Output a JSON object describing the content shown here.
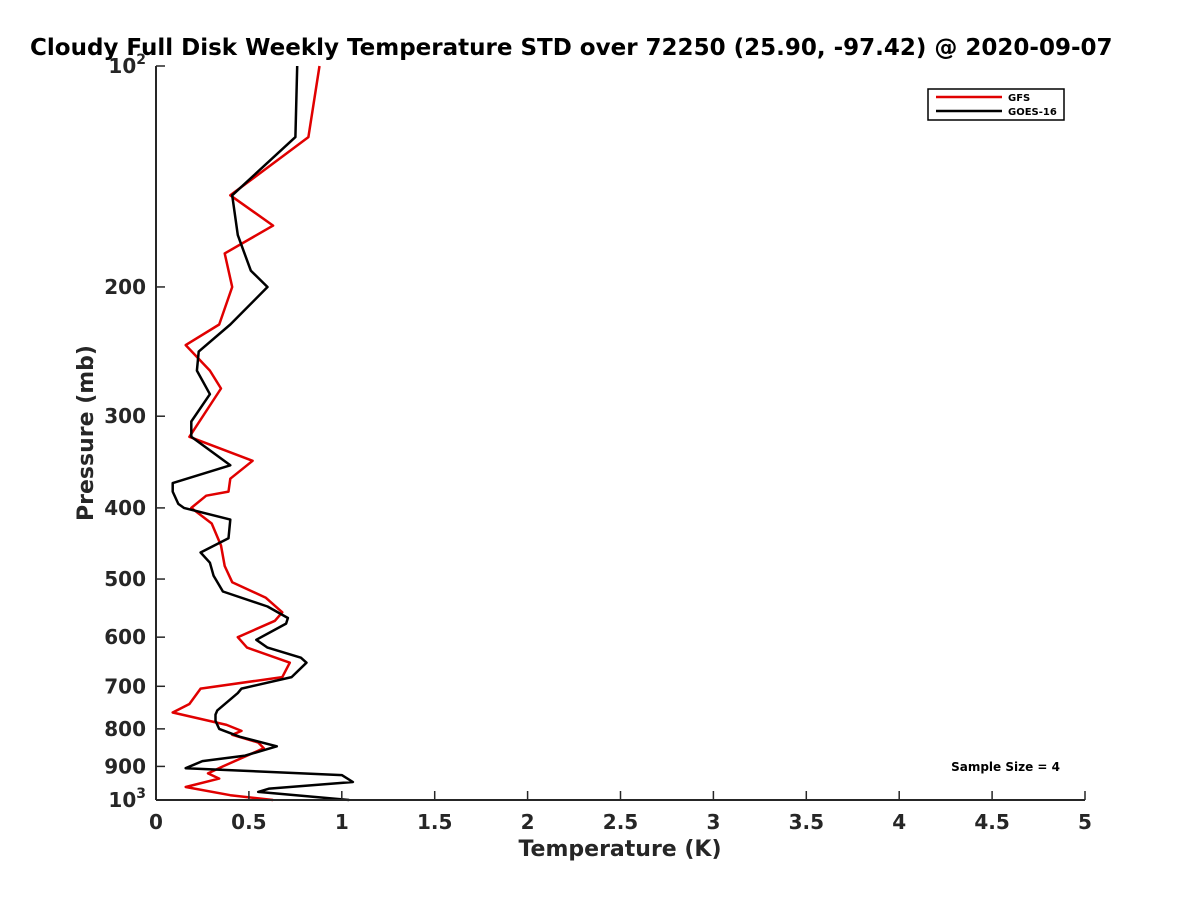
{
  "chart_data": {
    "type": "line",
    "title": "Cloudy Full Disk Weekly Temperature STD over 72250 (25.90, -97.42) @ 2020-09-07",
    "xlabel": "Temperature (K)",
    "ylabel": "Pressure (mb)",
    "xlim": [
      0,
      5
    ],
    "ylim": [
      100,
      1000
    ],
    "yscale": "log",
    "y_reversed": true,
    "grid": false,
    "legend_placement": "top-right",
    "x_ticks": [
      0,
      0.5,
      1,
      1.5,
      2,
      2.5,
      3,
      3.5,
      4,
      4.5,
      5
    ],
    "x_tick_labels": [
      "0",
      "0.5",
      "1",
      "1.5",
      "2",
      "2.5",
      "3",
      "3.5",
      "4",
      "4.5",
      "5"
    ],
    "y_ticks": [
      {
        "value": 100,
        "base": "10",
        "exp": "2"
      },
      {
        "value": 200,
        "label": "200"
      },
      {
        "value": 300,
        "label": "300"
      },
      {
        "value": 400,
        "label": "400"
      },
      {
        "value": 500,
        "label": "500"
      },
      {
        "value": 600,
        "label": "600"
      },
      {
        "value": 700,
        "label": "700"
      },
      {
        "value": 800,
        "label": "800"
      },
      {
        "value": 900,
        "label": "900"
      },
      {
        "value": 1000,
        "base": "10",
        "exp": "3"
      }
    ],
    "annotation": "Sample Size = 4",
    "series": [
      {
        "name": "GFS",
        "color": "#e00000",
        "points": [
          [
            0.88,
            100
          ],
          [
            0.82,
            125
          ],
          [
            0.4,
            150
          ],
          [
            0.63,
            165
          ],
          [
            0.37,
            180
          ],
          [
            0.41,
            200
          ],
          [
            0.34,
            225
          ],
          [
            0.16,
            240
          ],
          [
            0.29,
            260
          ],
          [
            0.35,
            275
          ],
          [
            0.18,
            320
          ],
          [
            0.52,
            345
          ],
          [
            0.4,
            365
          ],
          [
            0.39,
            380
          ],
          [
            0.27,
            385
          ],
          [
            0.19,
            400
          ],
          [
            0.3,
            420
          ],
          [
            0.35,
            450
          ],
          [
            0.37,
            480
          ],
          [
            0.41,
            505
          ],
          [
            0.59,
            530
          ],
          [
            0.68,
            555
          ],
          [
            0.64,
            570
          ],
          [
            0.44,
            600
          ],
          [
            0.49,
            620
          ],
          [
            0.72,
            650
          ],
          [
            0.68,
            680
          ],
          [
            0.24,
            705
          ],
          [
            0.18,
            740
          ],
          [
            0.09,
            760
          ],
          [
            0.38,
            790
          ],
          [
            0.46,
            805
          ],
          [
            0.41,
            815
          ],
          [
            0.55,
            835
          ],
          [
            0.58,
            850
          ],
          [
            0.36,
            900
          ],
          [
            0.28,
            920
          ],
          [
            0.34,
            935
          ],
          [
            0.16,
            960
          ],
          [
            0.4,
            985
          ],
          [
            0.63,
            1000
          ]
        ]
      },
      {
        "name": "GOES-16",
        "color": "#000000",
        "points": [
          [
            0.76,
            100
          ],
          [
            0.75,
            125
          ],
          [
            0.41,
            150
          ],
          [
            0.44,
            170
          ],
          [
            0.51,
            190
          ],
          [
            0.6,
            200
          ],
          [
            0.4,
            225
          ],
          [
            0.23,
            245
          ],
          [
            0.22,
            260
          ],
          [
            0.29,
            280
          ],
          [
            0.19,
            305
          ],
          [
            0.19,
            320
          ],
          [
            0.4,
            350
          ],
          [
            0.09,
            370
          ],
          [
            0.09,
            380
          ],
          [
            0.12,
            395
          ],
          [
            0.15,
            400
          ],
          [
            0.4,
            415
          ],
          [
            0.39,
            440
          ],
          [
            0.24,
            460
          ],
          [
            0.29,
            475
          ],
          [
            0.31,
            495
          ],
          [
            0.36,
            520
          ],
          [
            0.6,
            545
          ],
          [
            0.71,
            565
          ],
          [
            0.7,
            575
          ],
          [
            0.54,
            605
          ],
          [
            0.6,
            620
          ],
          [
            0.78,
            640
          ],
          [
            0.81,
            650
          ],
          [
            0.73,
            680
          ],
          [
            0.46,
            705
          ],
          [
            0.44,
            715
          ],
          [
            0.33,
            755
          ],
          [
            0.32,
            765
          ],
          [
            0.32,
            780
          ],
          [
            0.34,
            800
          ],
          [
            0.45,
            820
          ],
          [
            0.65,
            845
          ],
          [
            0.48,
            870
          ],
          [
            0.25,
            885
          ],
          [
            0.16,
            905
          ],
          [
            1.0,
            925
          ],
          [
            1.06,
            945
          ],
          [
            0.61,
            965
          ],
          [
            0.55,
            975
          ],
          [
            1.04,
            1000
          ]
        ]
      }
    ]
  }
}
